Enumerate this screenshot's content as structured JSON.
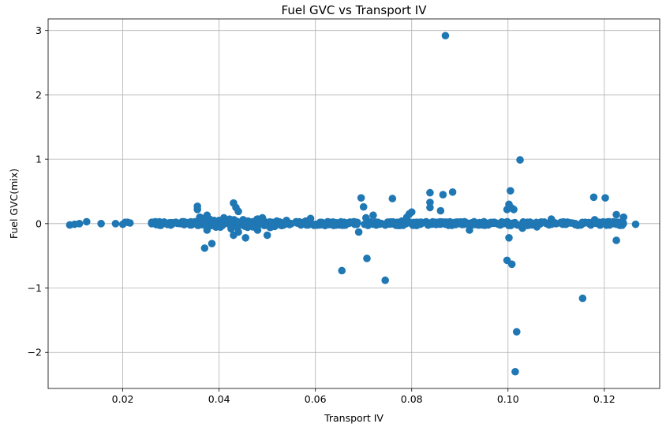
{
  "chart_data": {
    "type": "scatter",
    "title": "Fuel GVC vs Transport IV",
    "xlabel": "Transport IV",
    "ylabel": "Fuel GVC(mix)",
    "xlim": [
      0.0045,
      0.1315
    ],
    "ylim": [
      -2.56,
      3.18
    ],
    "xticks": [
      0.02,
      0.04,
      0.06,
      0.08,
      0.1,
      0.12
    ],
    "xtick_labels": [
      "0.02",
      "0.04",
      "0.06",
      "0.08",
      "0.10",
      "0.12"
    ],
    "yticks": [
      -2,
      -1,
      0,
      1,
      2,
      3
    ],
    "ytick_labels": [
      "−2",
      "−1",
      "0",
      "1",
      "2",
      "3"
    ],
    "grid": true,
    "marker_color": "#1f77b4",
    "points": [
      [
        0.009,
        -0.02
      ],
      [
        0.01,
        -0.01
      ],
      [
        0.011,
        0.0
      ],
      [
        0.0125,
        0.03
      ],
      [
        0.0155,
        0.0
      ],
      [
        0.0185,
        0.0
      ],
      [
        0.02,
        -0.01
      ],
      [
        0.0205,
        0.02
      ],
      [
        0.021,
        0.02
      ],
      [
        0.0215,
        0.01
      ],
      [
        0.026,
        0.0
      ],
      [
        0.027,
        0.01
      ],
      [
        0.028,
        0.0
      ],
      [
        0.029,
        0.01
      ],
      [
        0.03,
        -0.01
      ],
      [
        0.031,
        0.02
      ],
      [
        0.032,
        0.0
      ],
      [
        0.033,
        0.01
      ],
      [
        0.034,
        -0.02
      ],
      [
        0.035,
        0.03
      ],
      [
        0.0355,
        0.22
      ],
      [
        0.0355,
        0.27
      ],
      [
        0.036,
        0.1
      ],
      [
        0.0365,
        0.08
      ],
      [
        0.037,
        -0.38
      ],
      [
        0.0375,
        0.13
      ],
      [
        0.0375,
        -0.1
      ],
      [
        0.038,
        0.0
      ],
      [
        0.0385,
        -0.31
      ],
      [
        0.039,
        0.02
      ],
      [
        0.04,
        0.05
      ],
      [
        0.0405,
        -0.02
      ],
      [
        0.041,
        0.09
      ],
      [
        0.042,
        0.05
      ],
      [
        0.0425,
        -0.08
      ],
      [
        0.043,
        0.32
      ],
      [
        0.0435,
        0.25
      ],
      [
        0.043,
        -0.18
      ],
      [
        0.044,
        0.19
      ],
      [
        0.044,
        -0.13
      ],
      [
        0.045,
        0.06
      ],
      [
        0.0455,
        -0.22
      ],
      [
        0.046,
        0.04
      ],
      [
        0.047,
        -0.05
      ],
      [
        0.048,
        0.07
      ],
      [
        0.048,
        -0.1
      ],
      [
        0.049,
        0.09
      ],
      [
        0.0495,
        0.03
      ],
      [
        0.05,
        -0.18
      ],
      [
        0.051,
        0.02
      ],
      [
        0.052,
        0.04
      ],
      [
        0.053,
        -0.03
      ],
      [
        0.054,
        0.05
      ],
      [
        0.055,
        0.0
      ],
      [
        0.056,
        0.03
      ],
      [
        0.057,
        -0.02
      ],
      [
        0.058,
        0.04
      ],
      [
        0.059,
        0.08
      ],
      [
        0.06,
        -0.01
      ],
      [
        0.061,
        0.02
      ],
      [
        0.062,
        -0.03
      ],
      [
        0.063,
        0.02
      ],
      [
        0.064,
        0.01
      ],
      [
        0.065,
        -0.02
      ],
      [
        0.0655,
        -0.73
      ],
      [
        0.066,
        0.02
      ],
      [
        0.067,
        0.01
      ],
      [
        0.068,
        0.03
      ],
      [
        0.069,
        -0.13
      ],
      [
        0.0695,
        0.4
      ],
      [
        0.07,
        0.26
      ],
      [
        0.0705,
        0.09
      ],
      [
        0.0707,
        -0.54
      ],
      [
        0.071,
        0.0
      ],
      [
        0.072,
        0.13
      ],
      [
        0.073,
        0.02
      ],
      [
        0.0745,
        -0.88
      ],
      [
        0.075,
        0.01
      ],
      [
        0.076,
        0.39
      ],
      [
        0.077,
        0.02
      ],
      [
        0.078,
        0.04
      ],
      [
        0.079,
        0.1
      ],
      [
        0.0795,
        0.15
      ],
      [
        0.08,
        0.18
      ],
      [
        0.081,
        0.02
      ],
      [
        0.082,
        0.0
      ],
      [
        0.083,
        0.03
      ],
      [
        0.0838,
        0.48
      ],
      [
        0.0838,
        0.33
      ],
      [
        0.0838,
        0.25
      ],
      [
        0.085,
        0.02
      ],
      [
        0.086,
        0.2
      ],
      [
        0.0865,
        0.45
      ],
      [
        0.087,
        2.92
      ],
      [
        0.0885,
        0.49
      ],
      [
        0.089,
        0.02
      ],
      [
        0.09,
        0.0
      ],
      [
        0.091,
        0.03
      ],
      [
        0.092,
        -0.1
      ],
      [
        0.093,
        0.02
      ],
      [
        0.094,
        -0.01
      ],
      [
        0.095,
        0.03
      ],
      [
        0.096,
        0.0
      ],
      [
        0.097,
        0.02
      ],
      [
        0.098,
        -0.01
      ],
      [
        0.099,
        0.0
      ],
      [
        0.0998,
        0.22
      ],
      [
        0.0998,
        -0.57
      ],
      [
        0.1002,
        0.3
      ],
      [
        0.1002,
        -0.22
      ],
      [
        0.1005,
        0.51
      ],
      [
        0.1008,
        0.24
      ],
      [
        0.1008,
        -0.63
      ],
      [
        0.1012,
        0.22
      ],
      [
        0.1015,
        -2.3
      ],
      [
        0.1018,
        -1.68
      ],
      [
        0.1025,
        0.99
      ],
      [
        0.103,
        -0.07
      ],
      [
        0.104,
        0.02
      ],
      [
        0.105,
        0.0
      ],
      [
        0.106,
        -0.05
      ],
      [
        0.107,
        0.02
      ],
      [
        0.108,
        0.0
      ],
      [
        0.109,
        0.07
      ],
      [
        0.11,
        0.0
      ],
      [
        0.111,
        0.02
      ],
      [
        0.112,
        -0.01
      ],
      [
        0.113,
        0.01
      ],
      [
        0.114,
        0.0
      ],
      [
        0.1155,
        -1.16
      ],
      [
        0.116,
        0.02
      ],
      [
        0.117,
        -0.01
      ],
      [
        0.1178,
        0.41
      ],
      [
        0.118,
        0.06
      ],
      [
        0.119,
        0.0
      ],
      [
        0.1202,
        0.4
      ],
      [
        0.121,
        0.03
      ],
      [
        0.122,
        0.0
      ],
      [
        0.1225,
        0.14
      ],
      [
        0.1225,
        -0.26
      ],
      [
        0.123,
        0.02
      ],
      [
        0.124,
        0.1
      ],
      [
        0.1265,
        -0.01
      ]
    ]
  }
}
